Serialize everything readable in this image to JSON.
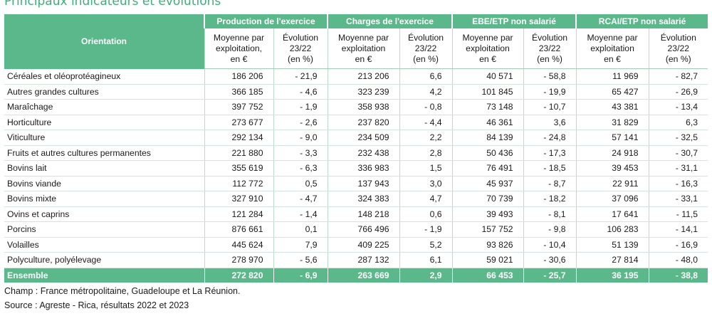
{
  "title": "Principaux indicateurs et évolutions",
  "columns": {
    "orientation": "Orientation",
    "groups": [
      "Production de l'exercice",
      "Charges de l'exercice",
      "EBE/ETP non salarié",
      "RCAI/ETP non salarié"
    ],
    "sub": [
      [
        "Moyenne par",
        "exploitation,",
        "en €"
      ],
      [
        "Évolution",
        "23/22",
        "(en %)"
      ],
      [
        "Moyenne par",
        "exploitation",
        "en €"
      ],
      [
        "Évolution",
        "23/22",
        "(en %)"
      ],
      [
        "Moyenne par",
        "exploitation",
        "en €"
      ],
      [
        "Évolution",
        "23/22",
        "(en %)"
      ],
      [
        "Moyenne par",
        "exploitation",
        "en €"
      ],
      [
        "Évolution",
        "23/22",
        "(en %)"
      ]
    ]
  },
  "rows": [
    [
      "Céréales et oléoprotéagineux",
      "186 206",
      "- 21,9",
      "213 206",
      "6,6",
      "40 571",
      "- 58,8",
      "11 969",
      "- 82,7"
    ],
    [
      "Autres grandes cultures",
      "366 185",
      "- 4,6",
      "323 239",
      "4,2",
      "101 845",
      "- 19,9",
      "65 427",
      "- 26,9"
    ],
    [
      "Maraîchage",
      "397 752",
      "- 1,9",
      "358 938",
      "- 0,8",
      "73 148",
      "- 10,7",
      "43 381",
      "- 13,4"
    ],
    [
      "Horticulture",
      "273 677",
      "- 2,6",
      "237 820",
      "- 4,4",
      "46 361",
      "3,6",
      "31 829",
      "6,3"
    ],
    [
      "Viticulture",
      "292 134",
      "- 9,0",
      "234 509",
      "2,2",
      "84 139",
      "- 24,8",
      "57 141",
      "- 32,5"
    ],
    [
      "Fruits et autres cultures permanentes",
      "221 880",
      "- 3,3",
      "232 438",
      "2,8",
      "50 436",
      "- 17,3",
      "24 918",
      "- 30,7"
    ],
    [
      "Bovins lait",
      "355 619",
      "- 6,3",
      "336 983",
      "1,5",
      "76 491",
      "- 18,5",
      "39 453",
      "- 31,1"
    ],
    [
      "Bovins viande",
      "112 772",
      "0,5",
      "137 943",
      "3,0",
      "45 937",
      "- 8,7",
      "22 911",
      "- 16,3"
    ],
    [
      "Bovins mixte",
      "327 910",
      "- 4,7",
      "324 383",
      "4,7",
      "70 739",
      "- 18,2",
      "37 096",
      "- 33,1"
    ],
    [
      "Ovins et caprins",
      "121 284",
      "- 1,4",
      "148 218",
      "0,6",
      "39 493",
      "- 8,1",
      "17 641",
      "- 11,5"
    ],
    [
      "Porcins",
      "876 661",
      "0,1",
      "766 496",
      "- 1,9",
      "157 752",
      "- 9,8",
      "106 283",
      "- 14,1"
    ],
    [
      "Volailles",
      "445 624",
      "7,9",
      "409 225",
      "5,2",
      "93 826",
      "- 10,4",
      "51 139",
      "- 16,9"
    ],
    [
      "Polyculture, polyélevage",
      "278 970",
      "- 5,6",
      "287 132",
      "6,1",
      "59 021",
      "- 30,6",
      "27 814",
      "- 48,0"
    ]
  ],
  "total": [
    "Ensemble",
    "272 820",
    "- 6,9",
    "263 669",
    "2,9",
    "66 453",
    "- 25,7",
    "36 195",
    "- 38,8"
  ],
  "notes": {
    "champ": "Champ : France métropolitaine, Guadeloupe et La Réunion.",
    "source": "Source : Agreste - Rica, résultats 2022 et 2023"
  },
  "colors": {
    "accent": "#5ab88a",
    "title": "#3fae79"
  }
}
